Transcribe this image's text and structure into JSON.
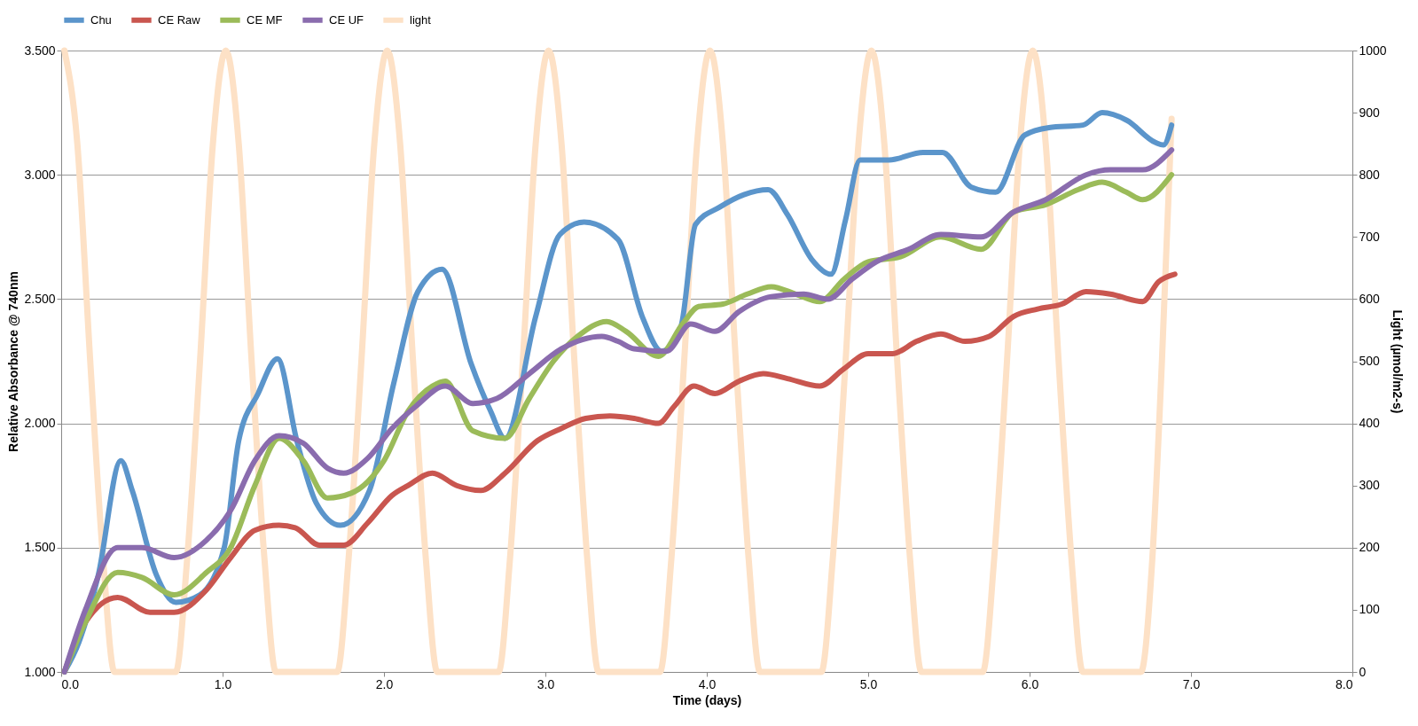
{
  "chart_data": {
    "type": "line",
    "xlabel": "Time (days)",
    "ylabel": "Relative Absorbance @ 740nm",
    "y2label": "Light (µmol/m2-s)",
    "xlim": [
      0,
      8
    ],
    "xticks": [
      {
        "value": 0,
        "label": "0.0"
      },
      {
        "value": 1,
        "label": "1.0"
      },
      {
        "value": 2,
        "label": "2.0"
      },
      {
        "value": 3,
        "label": "3.0"
      },
      {
        "value": 4,
        "label": "4.0"
      },
      {
        "value": 5,
        "label": "5.0"
      },
      {
        "value": 6,
        "label": "6.0"
      },
      {
        "value": 7,
        "label": "7.0"
      },
      {
        "value": 8,
        "label": "8.0"
      }
    ],
    "ylim": [
      1,
      3.5
    ],
    "yticks": [
      {
        "value": 1,
        "label": "1.000"
      },
      {
        "value": 1.5,
        "label": "1.500"
      },
      {
        "value": 2,
        "label": "2.000"
      },
      {
        "value": 2.5,
        "label": "2.500"
      },
      {
        "value": 3,
        "label": "3.000"
      },
      {
        "value": 3.5,
        "label": "3.500"
      }
    ],
    "y2lim": [
      0,
      1000
    ],
    "y2ticks": [
      0,
      100,
      200,
      300,
      400,
      500,
      600,
      700,
      800,
      900,
      1000
    ],
    "grid": "y",
    "legend": "top",
    "marker": "none",
    "line_style": "solid",
    "series": [
      {
        "name": "Chu",
        "color": "#5b95cb",
        "x": [
          0.02,
          0.11,
          0.23,
          0.37,
          0.44,
          0.59,
          0.71,
          0.86,
          1.01,
          1.1,
          1.22,
          1.34,
          1.46,
          1.58,
          1.73,
          1.91,
          2.06,
          2.21,
          2.36,
          2.54,
          2.66,
          2.75,
          2.94,
          3.09,
          3.24,
          3.45,
          3.6,
          3.72,
          3.84,
          3.93,
          4.08,
          4.23,
          4.38,
          4.5,
          4.65,
          4.77,
          4.86,
          4.95,
          5.13,
          5.34,
          5.46,
          5.64,
          5.79,
          5.97,
          6.12,
          6.33,
          6.45,
          6.6,
          6.78,
          6.83,
          6.88
        ],
        "values": [
          1.0,
          1.12,
          1.39,
          1.85,
          1.73,
          1.39,
          1.28,
          1.31,
          1.5,
          1.93,
          2.12,
          2.26,
          1.93,
          1.68,
          1.59,
          1.73,
          2.16,
          2.53,
          2.62,
          2.24,
          2.05,
          1.94,
          2.43,
          2.76,
          2.81,
          2.74,
          2.43,
          2.29,
          2.39,
          2.8,
          2.87,
          2.92,
          2.94,
          2.84,
          2.66,
          2.6,
          2.82,
          3.06,
          3.06,
          3.09,
          3.09,
          2.95,
          2.93,
          3.16,
          3.19,
          3.2,
          3.25,
          3.22,
          3.13,
          3.12,
          3.2
        ]
      },
      {
        "name": "CE Raw",
        "color": "#c9564f",
        "x": [
          0.02,
          0.15,
          0.35,
          0.55,
          0.7,
          0.9,
          1.05,
          1.2,
          1.35,
          1.45,
          1.6,
          1.75,
          1.9,
          2.05,
          2.15,
          2.3,
          2.45,
          2.6,
          2.75,
          2.95,
          3.1,
          3.25,
          3.4,
          3.55,
          3.7,
          3.8,
          3.92,
          4.05,
          4.2,
          4.35,
          4.5,
          4.7,
          4.85,
          5.0,
          5.15,
          5.3,
          5.45,
          5.6,
          5.75,
          5.9,
          6.05,
          6.2,
          6.35,
          6.5,
          6.7,
          6.8,
          6.9
        ],
        "values": [
          1.0,
          1.2,
          1.3,
          1.24,
          1.24,
          1.33,
          1.46,
          1.57,
          1.59,
          1.58,
          1.51,
          1.51,
          1.6,
          1.71,
          1.75,
          1.8,
          1.75,
          1.73,
          1.8,
          1.93,
          1.98,
          2.02,
          2.03,
          2.02,
          2.0,
          2.07,
          2.15,
          2.12,
          2.17,
          2.2,
          2.18,
          2.15,
          2.22,
          2.28,
          2.28,
          2.33,
          2.36,
          2.33,
          2.35,
          2.43,
          2.46,
          2.48,
          2.53,
          2.52,
          2.49,
          2.57,
          2.6
        ]
      },
      {
        "name": "CE MF",
        "color": "#9bbb59",
        "x": [
          0.02,
          0.15,
          0.35,
          0.5,
          0.7,
          0.9,
          1.05,
          1.2,
          1.35,
          1.5,
          1.65,
          1.8,
          2.0,
          2.15,
          2.3,
          2.38,
          2.55,
          2.75,
          2.9,
          3.05,
          3.2,
          3.38,
          3.5,
          3.7,
          3.85,
          3.95,
          4.1,
          4.25,
          4.4,
          4.55,
          4.7,
          4.85,
          5.0,
          5.2,
          5.45,
          5.7,
          5.9,
          6.1,
          6.3,
          6.45,
          6.6,
          6.7,
          6.88
        ],
        "values": [
          1.0,
          1.2,
          1.4,
          1.38,
          1.31,
          1.4,
          1.5,
          1.75,
          1.94,
          1.85,
          1.7,
          1.72,
          1.85,
          2.05,
          2.15,
          2.17,
          1.97,
          1.94,
          2.1,
          2.25,
          2.35,
          2.41,
          2.37,
          2.27,
          2.4,
          2.47,
          2.48,
          2.52,
          2.55,
          2.52,
          2.49,
          2.58,
          2.65,
          2.67,
          2.75,
          2.7,
          2.85,
          2.88,
          2.94,
          2.97,
          2.93,
          2.9,
          3.0
        ]
      },
      {
        "name": "CE UF",
        "color": "#8a6cae",
        "x": [
          0.02,
          0.15,
          0.35,
          0.5,
          0.7,
          0.9,
          1.05,
          1.2,
          1.35,
          1.5,
          1.65,
          1.75,
          1.9,
          2.05,
          2.2,
          2.38,
          2.55,
          2.7,
          2.9,
          3.1,
          3.35,
          3.45,
          3.55,
          3.75,
          3.9,
          4.05,
          4.2,
          4.4,
          4.6,
          4.75,
          4.9,
          5.05,
          5.25,
          5.45,
          5.7,
          5.9,
          6.1,
          6.35,
          6.5,
          6.7,
          6.88
        ],
        "values": [
          1.0,
          1.25,
          1.5,
          1.5,
          1.46,
          1.53,
          1.65,
          1.85,
          1.95,
          1.92,
          1.82,
          1.8,
          1.86,
          1.98,
          2.07,
          2.15,
          2.08,
          2.1,
          2.2,
          2.3,
          2.35,
          2.33,
          2.3,
          2.29,
          2.4,
          2.37,
          2.45,
          2.51,
          2.52,
          2.5,
          2.58,
          2.65,
          2.7,
          2.76,
          2.75,
          2.85,
          2.9,
          3.0,
          3.02,
          3.02,
          3.1
        ]
      },
      {
        "name": "light",
        "color": "#fde1c6",
        "axis": "y2",
        "x": [
          0.02,
          0.1,
          0.18,
          0.26,
          0.33,
          0.71,
          0.78,
          0.86,
          0.94,
          1.02,
          1.1,
          1.18,
          1.26,
          1.33,
          1.71,
          1.78,
          1.86,
          1.94,
          2.02,
          2.1,
          2.18,
          2.26,
          2.33,
          2.71,
          2.78,
          2.86,
          2.94,
          3.02,
          3.1,
          3.18,
          3.26,
          3.33,
          3.71,
          3.78,
          3.86,
          3.94,
          4.02,
          4.1,
          4.18,
          4.26,
          4.33,
          4.71,
          4.78,
          4.86,
          4.94,
          5.02,
          5.1,
          5.18,
          5.26,
          5.33,
          5.71,
          5.78,
          5.86,
          5.94,
          6.02,
          6.1,
          6.18,
          6.26,
          6.33,
          6.69,
          6.76,
          6.82,
          6.88
        ],
        "values": [
          1000,
          850,
          500,
          180,
          0,
          0,
          180,
          500,
          850,
          1000,
          850,
          500,
          180,
          0,
          0,
          180,
          500,
          850,
          1000,
          850,
          500,
          180,
          0,
          0,
          180,
          500,
          850,
          1000,
          850,
          500,
          180,
          0,
          0,
          180,
          500,
          850,
          1000,
          850,
          500,
          180,
          0,
          0,
          180,
          500,
          850,
          1000,
          850,
          500,
          180,
          0,
          0,
          180,
          500,
          850,
          1000,
          850,
          500,
          180,
          0,
          0,
          180,
          500,
          890
        ]
      }
    ]
  }
}
